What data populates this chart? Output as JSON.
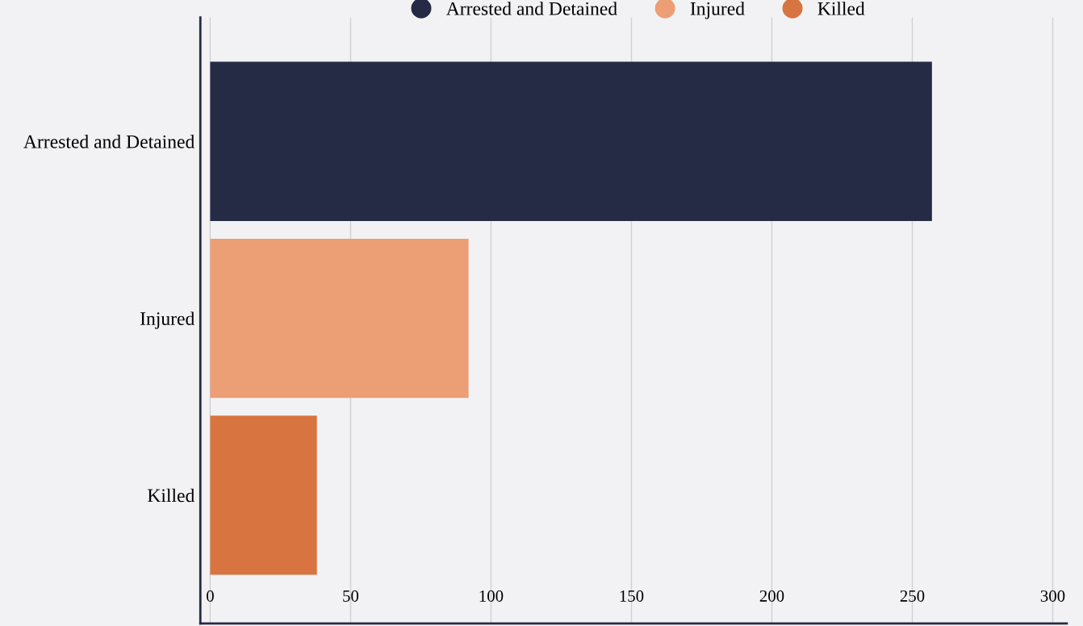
{
  "chart_data": {
    "type": "bar",
    "orientation": "horizontal",
    "categories": [
      "Arrested and Detained",
      "Injured",
      "Killed"
    ],
    "series": [
      {
        "name": "Arrested and Detained",
        "color": "#252a45",
        "values": [
          257,
          null,
          null
        ]
      },
      {
        "name": "Injured",
        "color": "#ec9e74",
        "values": [
          null,
          92,
          null
        ]
      },
      {
        "name": "Killed",
        "color": "#d8743f",
        "values": [
          null,
          null,
          38
        ]
      }
    ],
    "xlim": [
      -3.5,
      305
    ],
    "xticks": [
      0,
      50,
      100,
      150,
      200,
      250,
      300
    ],
    "grid": "x",
    "legend": "top"
  }
}
